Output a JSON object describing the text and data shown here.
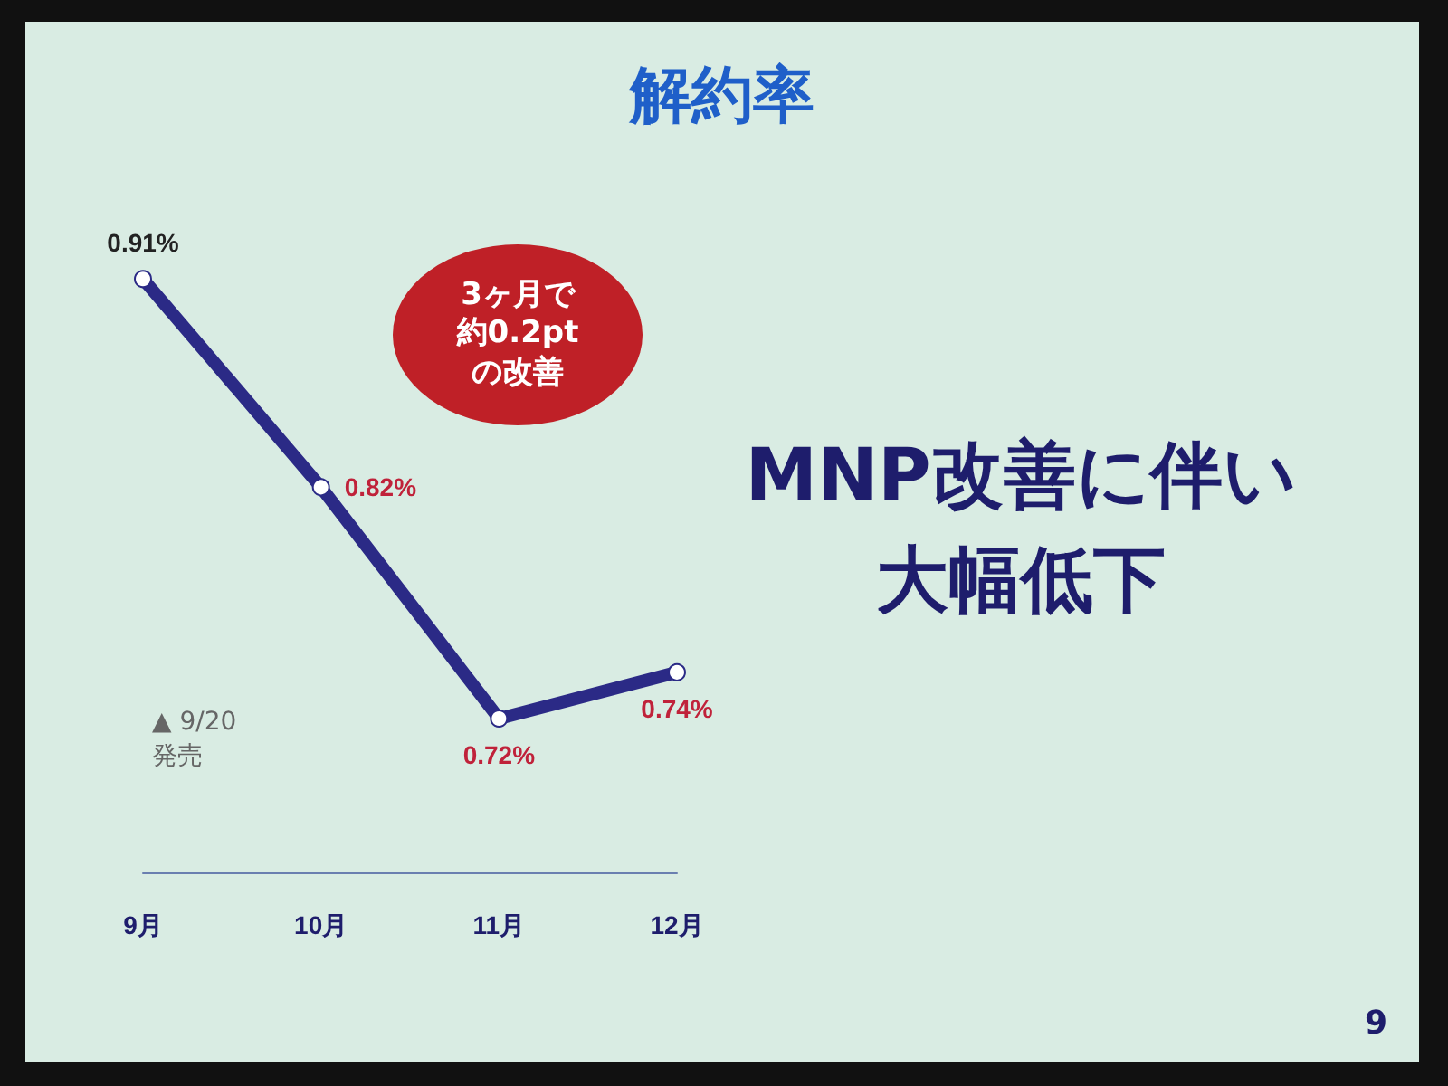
{
  "chart_data": {
    "type": "line",
    "title": "解約率",
    "categories": [
      "9月",
      "10月",
      "11月",
      "12月"
    ],
    "series": [
      {
        "color": "#2b2a86",
        "values": [
          0.91,
          0.82,
          0.72,
          0.74
        ],
        "value_labels": [
          "0.91%",
          "0.82%",
          "0.72%",
          "0.74%"
        ]
      }
    ],
    "marker": "circle",
    "line_style": "solid",
    "grid": false,
    "tick_labels": "x",
    "annotations": [
      "3ヶ月で約0.2ptの改善",
      "MNP改善に伴い大幅低下",
      "▲ 9/20\n発売",
      "9"
    ]
  }
}
